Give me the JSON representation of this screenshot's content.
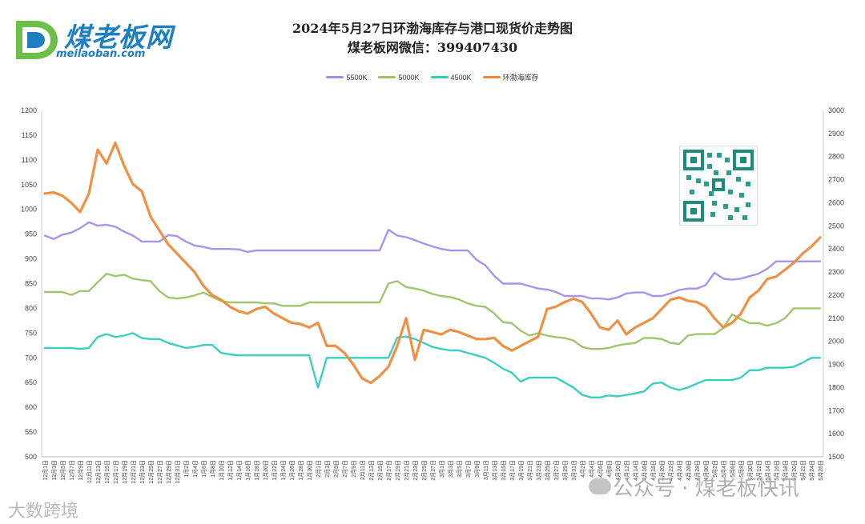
{
  "logo": {
    "name": "煤老板网",
    "url": "meilaoban.com"
  },
  "title": {
    "line1": "2024年5月27日环渤海库存与港口现货价走势图",
    "line2": "煤老板网微信：399407430"
  },
  "watermark": {
    "text": "公众号 · 煤老板快讯"
  },
  "source": {
    "text": "大数跨境"
  },
  "colors": {
    "s5500": "#a58cf0",
    "s5000": "#9cc266",
    "s4500": "#33cbbf",
    "inventory": "#ee8a3a",
    "grid": "#e6e6e6",
    "axis": "#555555"
  },
  "chart_data": {
    "type": "line",
    "title": "2024年5月27日环渤海库存与港口现货价走势图",
    "legend_position": "top-center",
    "x_labels": [
      "12月1日",
      "12月3日",
      "12月5日",
      "12月7日",
      "12月9日",
      "12月11日",
      "12月13日",
      "12月15日",
      "12月17日",
      "12月19日",
      "12月21日",
      "12月23日",
      "12月25日",
      "12月27日",
      "12月29日",
      "12月31日",
      "1月2日",
      "1月4日",
      "1月6日",
      "1月8日",
      "1月10日",
      "1月12日",
      "1月14日",
      "1月16日",
      "1月18日",
      "1月20日",
      "1月22日",
      "1月24日",
      "1月26日",
      "1月28日",
      "1月30日",
      "2月1日",
      "2月3日",
      "2月5日",
      "2月7日",
      "2月9日",
      "2月11日",
      "2月13日",
      "2月15日",
      "2月17日",
      "2月19日",
      "2月21日",
      "2月23日",
      "2月25日",
      "2月27日",
      "3月1日",
      "3月3日",
      "3月5日",
      "3月7日",
      "3月9日",
      "3月11日",
      "3月13日",
      "3月15日",
      "3月17日",
      "3月19日",
      "3月21日",
      "3月23日",
      "3月25日",
      "3月27日",
      "3月29日",
      "3月31日",
      "4月2日",
      "4月4日",
      "4月6日",
      "4月8日",
      "4月10日",
      "4月12日",
      "4月14日",
      "4月16日",
      "4月18日",
      "4月20日",
      "4月22日",
      "4月24日",
      "4月26日",
      "4月28日",
      "4月30日",
      "5月2日",
      "5月4日",
      "5月6日",
      "5月8日",
      "5月10日",
      "5月12日",
      "5月14日",
      "5月16日",
      "5月18日",
      "5月20日",
      "5月22日",
      "5月24日",
      "5月26日"
    ],
    "y_left": {
      "min": 500,
      "max": 1200,
      "step": 50,
      "ticks": [
        "500",
        "550",
        "600",
        "650",
        "700",
        "750",
        "800",
        "850",
        "900",
        "950",
        "1000",
        "1050",
        "1100",
        "1150",
        "1200"
      ]
    },
    "y_right": {
      "min": 1500,
      "max": 3000,
      "step": 100,
      "ticks": [
        "1500",
        "1600",
        "1700",
        "1800",
        "1900",
        "2000",
        "2100",
        "2200",
        "2300",
        "2400",
        "2500",
        "2600",
        "2700",
        "2800",
        "2900",
        "3000"
      ]
    },
    "series": [
      {
        "name": "5500K",
        "axis": "left",
        "color": "#a58cf0",
        "values": [
          947,
          940,
          949,
          953,
          962,
          974,
          967,
          969,
          965,
          955,
          947,
          935,
          935,
          935,
          948,
          946,
          935,
          927,
          924,
          920,
          920,
          920,
          919,
          914,
          917,
          917,
          917,
          917,
          917,
          917,
          917,
          917,
          917,
          917,
          917,
          917,
          917,
          917,
          917,
          959,
          947,
          944,
          938,
          931,
          925,
          920,
          917,
          917,
          917,
          898,
          887,
          866,
          850,
          850,
          850,
          845,
          840,
          838,
          833,
          825,
          825,
          825,
          820,
          820,
          818,
          822,
          830,
          832,
          832,
          825,
          825,
          830,
          837,
          840,
          840,
          847,
          872,
          860,
          858,
          860,
          865,
          870,
          880,
          895,
          895,
          895,
          895,
          895,
          895
        ]
      },
      {
        "name": "5000K",
        "axis": "left",
        "color": "#9cc266",
        "values": [
          833,
          833,
          833,
          827,
          835,
          835,
          853,
          870,
          865,
          868,
          860,
          857,
          855,
          835,
          822,
          820,
          822,
          826,
          832,
          823,
          815,
          812,
          812,
          812,
          812,
          810,
          810,
          805,
          805,
          805,
          812,
          812,
          812,
          812,
          812,
          812,
          812,
          812,
          812,
          850,
          855,
          843,
          840,
          836,
          829,
          825,
          823,
          818,
          810,
          805,
          803,
          790,
          772,
          770,
          755,
          745,
          750,
          745,
          742,
          740,
          735,
          722,
          718,
          718,
          720,
          725,
          728,
          730,
          740,
          740,
          738,
          730,
          728,
          745,
          748,
          748,
          748,
          760,
          788,
          778,
          770,
          770,
          765,
          770,
          780,
          800,
          800,
          800,
          800
        ]
      },
      {
        "name": "4500K",
        "axis": "left",
        "color": "#33cbbf",
        "values": [
          720,
          720,
          720,
          720,
          718,
          720,
          742,
          748,
          742,
          745,
          750,
          740,
          738,
          738,
          730,
          725,
          720,
          722,
          726,
          726,
          710,
          707,
          705,
          705,
          705,
          705,
          705,
          705,
          705,
          705,
          705,
          640,
          700,
          700,
          700,
          700,
          700,
          700,
          700,
          700,
          741,
          743,
          738,
          730,
          722,
          718,
          715,
          715,
          710,
          705,
          700,
          690,
          678,
          670,
          652,
          660,
          660,
          660,
          660,
          650,
          640,
          625,
          620,
          620,
          624,
          622,
          625,
          628,
          632,
          648,
          650,
          640,
          635,
          640,
          648,
          655,
          655,
          655,
          655,
          660,
          675,
          675,
          680,
          680,
          680,
          682,
          690,
          700,
          700
        ]
      },
      {
        "name": "环渤海库存",
        "axis": "right",
        "color": "#ee8a3a",
        "values": [
          2640,
          2645,
          2630,
          2600,
          2560,
          2640,
          2830,
          2770,
          2860,
          2760,
          2680,
          2650,
          2540,
          2480,
          2420,
          2380,
          2340,
          2300,
          2240,
          2200,
          2180,
          2150,
          2130,
          2120,
          2140,
          2150,
          2120,
          2100,
          2080,
          2075,
          2060,
          2080,
          1980,
          1980,
          1950,
          1900,
          1840,
          1820,
          1850,
          1890,
          1980,
          2100,
          1920,
          2050,
          2040,
          2030,
          2050,
          2040,
          2025,
          2010,
          2010,
          2015,
          1980,
          1960,
          1980,
          2000,
          2020,
          2140,
          2150,
          2170,
          2185,
          2170,
          2120,
          2060,
          2050,
          2090,
          2030,
          2060,
          2080,
          2100,
          2140,
          2180,
          2190,
          2175,
          2170,
          2150,
          2100,
          2060,
          2080,
          2120,
          2190,
          2220,
          2270,
          2280,
          2310,
          2340,
          2380,
          2410,
          2450
        ]
      }
    ]
  }
}
